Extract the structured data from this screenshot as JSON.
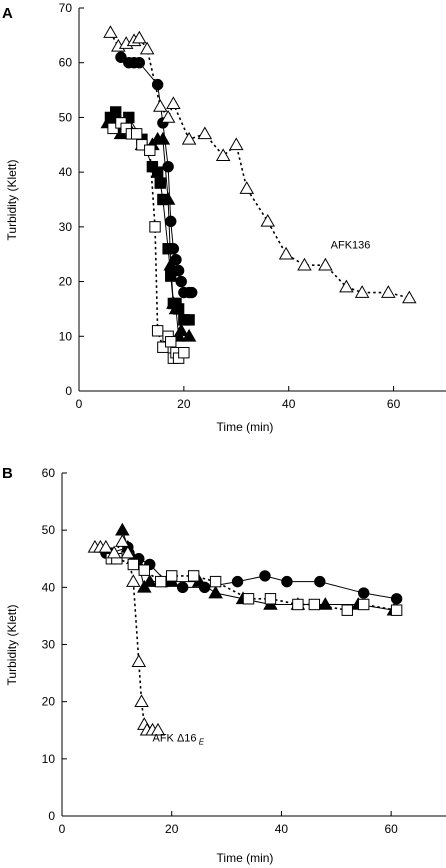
{
  "chart_data": [
    {
      "type": "scatter",
      "panel_label": "A",
      "xlabel": "Time (min)",
      "ylabel": "Turbidity (Klett)",
      "xlim": [
        0,
        70
      ],
      "ylim": [
        0,
        70
      ],
      "xticks": [
        0,
        20,
        40,
        60
      ],
      "yticks": [
        0,
        10,
        20,
        30,
        40,
        50,
        60,
        70
      ],
      "grid": false,
      "annotations": [
        {
          "text": "AFK136",
          "x": 48,
          "y": 26
        }
      ],
      "series": [
        {
          "marker": "circle-filled",
          "line": "solid",
          "x": [
            8,
            9.5,
            10.5,
            11.5,
            15,
            16,
            17,
            17.5,
            18,
            18.5,
            19,
            19.5,
            20,
            21,
            21.5
          ],
          "y": [
            61,
            60,
            60,
            60,
            56,
            49,
            41,
            31,
            26,
            24,
            22,
            20,
            18,
            18,
            18
          ]
        },
        {
          "marker": "square-filled",
          "line": "solid",
          "x": [
            6,
            7,
            8,
            9.5,
            12,
            14,
            15,
            15.5,
            16,
            17,
            17.5,
            18,
            18.5,
            19,
            20,
            21
          ],
          "y": [
            50,
            51,
            49,
            50,
            46,
            41,
            40,
            38,
            35,
            26,
            21,
            16,
            16,
            15,
            13,
            13
          ]
        },
        {
          "marker": "triangle-filled",
          "line": "solid",
          "x": [
            5.5,
            7,
            8,
            9,
            12,
            14,
            15,
            16,
            17,
            17.5,
            18,
            18.5,
            19,
            19.5,
            21
          ],
          "y": [
            49,
            48,
            47,
            49,
            45,
            45,
            46,
            46,
            35,
            23,
            16,
            15,
            10,
            11,
            10
          ]
        },
        {
          "marker": "square-open",
          "line": "dashed",
          "x": [
            6.5,
            8,
            9,
            10,
            11,
            12,
            13.5,
            14.5,
            15,
            16,
            17,
            17.5,
            18,
            18.5,
            19,
            20
          ],
          "y": [
            48,
            49,
            48,
            47,
            47,
            45,
            44,
            30,
            11,
            8,
            10,
            9,
            6,
            7,
            6,
            7
          ]
        },
        {
          "marker": "triangle-open",
          "line": "dashed",
          "x": [
            6,
            7.5,
            9,
            10.5,
            11.5,
            13,
            15.5,
            17,
            18,
            21,
            24,
            27.5,
            30,
            32,
            36,
            39.5,
            43,
            47,
            51,
            54,
            59,
            63
          ],
          "y": [
            65.5,
            63,
            63.5,
            64,
            64.5,
            62.5,
            52,
            50,
            52.5,
            46,
            47,
            43,
            45,
            37,
            31,
            25,
            23,
            23,
            19,
            18,
            18,
            17
          ]
        }
      ]
    },
    {
      "type": "scatter",
      "panel_label": "B",
      "xlabel": "Time (min)",
      "ylabel": "Turbidity (Klett)",
      "xlim": [
        0,
        70
      ],
      "ylim": [
        0,
        60
      ],
      "xticks": [
        0,
        20,
        40,
        60
      ],
      "yticks": [
        0,
        10,
        20,
        30,
        40,
        50,
        60
      ],
      "grid": false,
      "annotations": [
        {
          "text": "AFK Δ16",
          "subscript": "E",
          "x": 16.5,
          "y": 13
        }
      ],
      "series": [
        {
          "marker": "circle-filled",
          "line": "solid",
          "x": [
            8,
            9,
            12,
            14,
            16,
            19,
            22,
            26,
            32,
            37,
            41,
            47,
            55,
            61
          ],
          "y": [
            46,
            46,
            47,
            45,
            44,
            41,
            40,
            40,
            41,
            42,
            41,
            41,
            39,
            38
          ]
        },
        {
          "marker": "triangle-filled",
          "line": "solid",
          "x": [
            11,
            12,
            13,
            14,
            15,
            16,
            18,
            20,
            25,
            28,
            33,
            38,
            43,
            48,
            54,
            60.5
          ],
          "y": [
            50,
            47,
            45,
            44,
            40,
            41,
            41,
            41,
            41,
            39,
            38,
            37,
            37,
            37,
            37,
            36
          ]
        },
        {
          "marker": "square-open",
          "line": "dashed",
          "x": [
            9,
            10,
            13,
            15,
            18,
            20,
            24,
            28,
            34,
            38,
            43,
            46,
            52,
            55,
            61
          ],
          "y": [
            45,
            45,
            44,
            43,
            41,
            42,
            42,
            41,
            38,
            38,
            37,
            37,
            36,
            37,
            36
          ]
        },
        {
          "marker": "triangle-open",
          "line": "dashed",
          "x": [
            6,
            7,
            8,
            9.5,
            11,
            12,
            13,
            14,
            14.5,
            15,
            15.5,
            16.5,
            17.5
          ],
          "y": [
            47,
            47,
            47,
            46,
            48,
            46,
            41,
            27,
            20,
            16,
            15,
            15,
            15
          ]
        }
      ]
    }
  ]
}
